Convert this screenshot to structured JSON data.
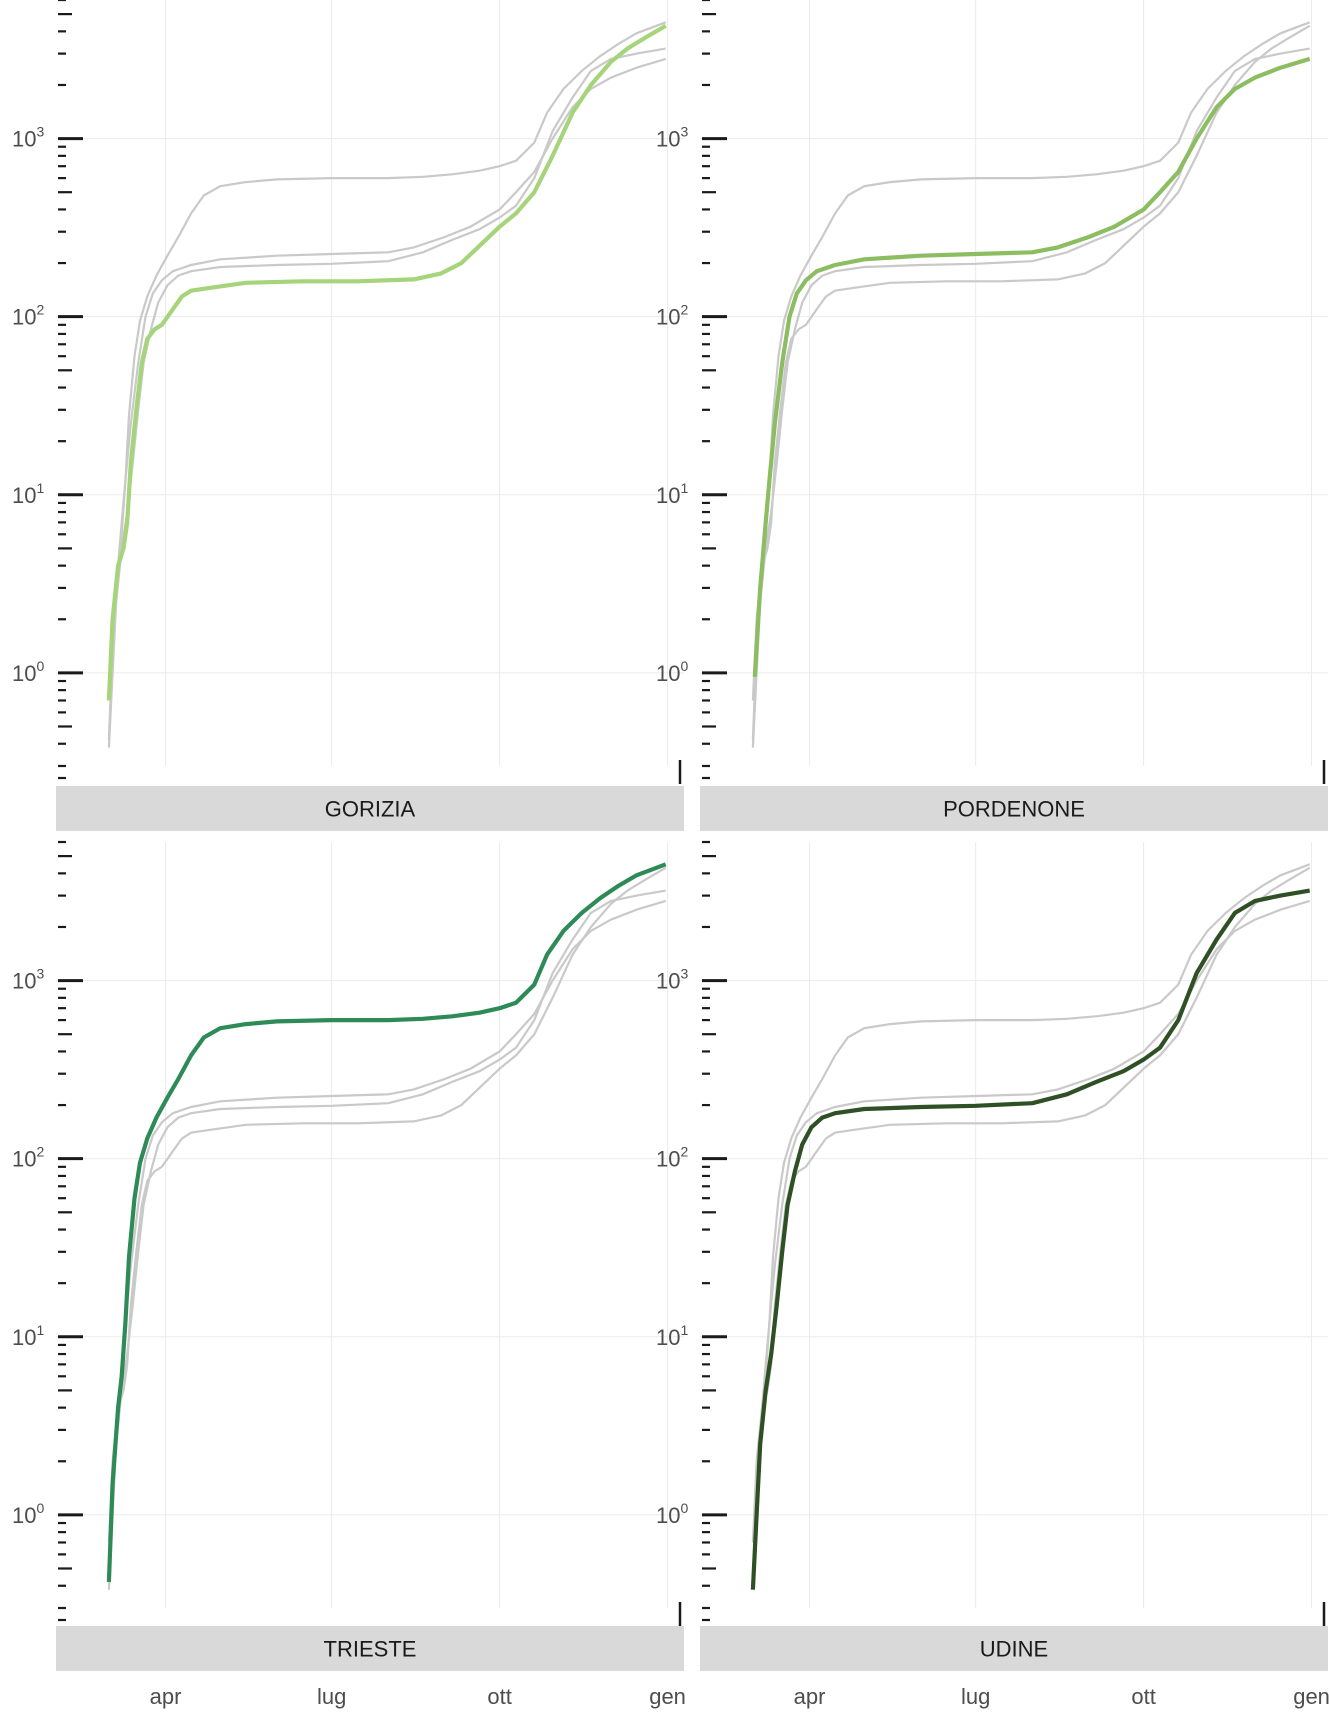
{
  "chart_data": {
    "type": "line",
    "facets": [
      "GORIZIA",
      "PORDENONE",
      "TRIESTE",
      "UDINE"
    ],
    "yscale": "log10",
    "ylim": [
      0.3,
      6000
    ],
    "y_ticks": [
      {
        "value": 1,
        "base": "10",
        "exp": "0"
      },
      {
        "value": 10,
        "base": "10",
        "exp": "1"
      },
      {
        "value": 100,
        "base": "10",
        "exp": "2"
      },
      {
        "value": 1000,
        "base": "10",
        "exp": "3"
      }
    ],
    "x_ticks": [
      {
        "label": "apr",
        "date": "2020-04-01"
      },
      {
        "label": "lug",
        "date": "2020-07-01"
      },
      {
        "label": "ott",
        "date": "2020-10-01"
      },
      {
        "label": "gen",
        "date": "2021-01-01"
      }
    ],
    "xlim": [
      "2020-02-01",
      "2021-01-10"
    ],
    "grid": true,
    "series": [
      {
        "name": "GORIZIA",
        "color": "#a6d47a",
        "x": [
          "2020-03-01",
          "2020-03-03",
          "2020-03-06",
          "2020-03-09",
          "2020-03-11",
          "2020-03-13",
          "2020-03-16",
          "2020-03-19",
          "2020-03-22",
          "2020-03-26",
          "2020-03-30",
          "2020-04-05",
          "2020-04-10",
          "2020-04-15",
          "2020-04-25",
          "2020-05-15",
          "2020-06-15",
          "2020-07-15",
          "2020-08-15",
          "2020-08-30",
          "2020-09-10",
          "2020-09-20",
          "2020-10-01",
          "2020-10-10",
          "2020-10-20",
          "2020-10-30",
          "2020-11-10",
          "2020-11-20",
          "2020-12-01",
          "2020-12-10",
          "2020-12-20",
          "2020-12-31"
        ],
        "y": [
          0.7,
          2,
          4,
          5,
          7,
          15,
          30,
          55,
          75,
          85,
          90,
          110,
          130,
          140,
          145,
          155,
          158,
          158,
          162,
          175,
          200,
          250,
          320,
          380,
          500,
          800,
          1400,
          2000,
          2700,
          3200,
          3700,
          4300
        ]
      },
      {
        "name": "PORDENONE",
        "color": "#8cbd61",
        "x": [
          "2020-03-02",
          "2020-03-05",
          "2020-03-08",
          "2020-03-10",
          "2020-03-13",
          "2020-03-17",
          "2020-03-21",
          "2020-03-25",
          "2020-03-30",
          "2020-04-05",
          "2020-04-15",
          "2020-05-01",
          "2020-06-01",
          "2020-07-01",
          "2020-08-01",
          "2020-08-15",
          "2020-09-01",
          "2020-09-15",
          "2020-10-01",
          "2020-10-10",
          "2020-10-20",
          "2020-10-30",
          "2020-11-10",
          "2020-11-20",
          "2020-12-01",
          "2020-12-15",
          "2020-12-31"
        ],
        "y": [
          0.95,
          3,
          7,
          12,
          25,
          55,
          100,
          135,
          160,
          180,
          195,
          210,
          220,
          225,
          230,
          245,
          280,
          320,
          400,
          500,
          650,
          1000,
          1500,
          1900,
          2200,
          2500,
          2800
        ]
      },
      {
        "name": "TRIESTE",
        "color": "#2e8b57",
        "x": [
          "2020-03-01",
          "2020-03-03",
          "2020-03-06",
          "2020-03-08",
          "2020-03-10",
          "2020-03-12",
          "2020-03-15",
          "2020-03-18",
          "2020-03-22",
          "2020-03-27",
          "2020-04-02",
          "2020-04-08",
          "2020-04-15",
          "2020-04-22",
          "2020-05-01",
          "2020-05-15",
          "2020-06-01",
          "2020-07-01",
          "2020-08-01",
          "2020-08-20",
          "2020-09-05",
          "2020-09-20",
          "2020-10-01",
          "2020-10-10",
          "2020-10-20",
          "2020-10-27",
          "2020-11-05",
          "2020-11-15",
          "2020-11-25",
          "2020-12-05",
          "2020-12-15",
          "2020-12-31"
        ],
        "y": [
          0.42,
          1.5,
          4,
          6,
          12,
          28,
          60,
          95,
          130,
          170,
          220,
          280,
          380,
          480,
          540,
          570,
          590,
          600,
          600,
          610,
          630,
          660,
          700,
          750,
          950,
          1400,
          1900,
          2400,
          2900,
          3400,
          3900,
          4500
        ]
      },
      {
        "name": "UDINE",
        "color": "#2f4f25",
        "x": [
          "2020-03-01",
          "2020-03-03",
          "2020-03-05",
          "2020-03-08",
          "2020-03-11",
          "2020-03-14",
          "2020-03-17",
          "2020-03-20",
          "2020-03-24",
          "2020-03-28",
          "2020-04-02",
          "2020-04-08",
          "2020-04-15",
          "2020-05-01",
          "2020-06-01",
          "2020-07-01",
          "2020-08-01",
          "2020-08-20",
          "2020-09-05",
          "2020-09-20",
          "2020-10-01",
          "2020-10-10",
          "2020-10-20",
          "2020-10-30",
          "2020-11-10",
          "2020-11-20",
          "2020-12-01",
          "2020-12-15",
          "2020-12-31"
        ],
        "y": [
          0.38,
          1,
          2.5,
          5,
          8,
          15,
          30,
          55,
          85,
          120,
          150,
          170,
          180,
          190,
          195,
          198,
          205,
          230,
          270,
          310,
          360,
          420,
          600,
          1100,
          1700,
          2400,
          2800,
          3000,
          3200
        ]
      }
    ]
  }
}
